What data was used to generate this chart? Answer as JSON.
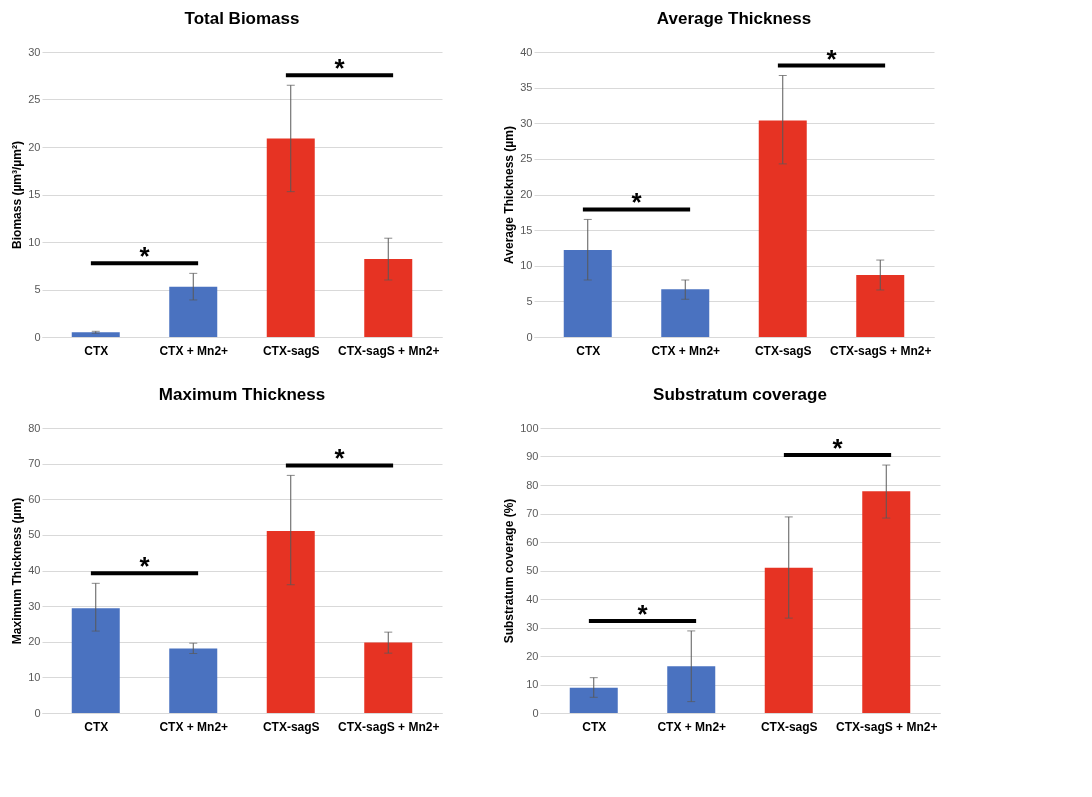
{
  "chart_data": [
    {
      "type": "bar",
      "title": "Total Biomass",
      "ylabel": "Biomass (µm³/µm²)",
      "categories": [
        "CTX",
        "CTX + Mn2+",
        "CTX-sagS",
        "CTX-sagS + Mn2+"
      ],
      "values": [
        0.5,
        5.3,
        20.9,
        8.2
      ],
      "colors": [
        "#4a72c0",
        "#4a72c0",
        "#e63323",
        "#e63323"
      ],
      "errors": [
        [
          0.4,
          0.6
        ],
        [
          3.9,
          6.7
        ],
        [
          15.3,
          26.5
        ],
        [
          6.0,
          10.4
        ]
      ],
      "ylim": [
        0,
        30
      ],
      "yticks": [
        0,
        5,
        10,
        15,
        20,
        25,
        30
      ],
      "grid": "y",
      "annotations": [
        "*",
        "*"
      ]
    },
    {
      "type": "bar",
      "title": "Average Thickness",
      "ylabel": "Average Thickness (µm)",
      "categories": [
        "CTX",
        "CTX + Mn2+",
        "CTX-sagS",
        "CTX-sagS + Mn2+"
      ],
      "values": [
        12.2,
        6.7,
        30.4,
        8.7
      ],
      "colors": [
        "#4a72c0",
        "#4a72c0",
        "#e63323",
        "#e63323"
      ],
      "errors": [
        [
          8.0,
          16.5
        ],
        [
          5.3,
          8.0
        ],
        [
          24.3,
          36.7
        ],
        [
          6.6,
          10.8
        ]
      ],
      "ylim": [
        0,
        40
      ],
      "yticks": [
        0,
        5,
        10,
        15,
        20,
        25,
        30,
        35,
        40
      ],
      "grid": "y",
      "annotations": [
        "*",
        "*"
      ]
    },
    {
      "type": "bar",
      "title": "Maximum Thickness",
      "ylabel": "Maximum Thickness (µm)",
      "categories": [
        "CTX",
        "CTX + Mn2+",
        "CTX-sagS",
        "CTX-sagS + Mn2+"
      ],
      "values": [
        29.4,
        18.1,
        51.1,
        19.8
      ],
      "colors": [
        "#4a72c0",
        "#4a72c0",
        "#e63323",
        "#e63323"
      ],
      "errors": [
        [
          23.0,
          36.4
        ],
        [
          16.7,
          19.6
        ],
        [
          36.0,
          66.7
        ],
        [
          16.8,
          22.7
        ]
      ],
      "ylim": [
        0,
        80
      ],
      "yticks": [
        0,
        10,
        20,
        30,
        40,
        50,
        60,
        70,
        80
      ],
      "grid": "y",
      "annotations": [
        "*",
        "*"
      ]
    },
    {
      "type": "bar",
      "title": "Substratum coverage",
      "ylabel": "Substratum coverage (%)",
      "categories": [
        "CTX",
        "CTX + Mn2+",
        "CTX-sagS",
        "CTX-sagS + Mn2+"
      ],
      "values": [
        8.9,
        16.4,
        51,
        77.8
      ],
      "colors": [
        "#4a72c0",
        "#4a72c0",
        "#e63323",
        "#e63323"
      ],
      "errors": [
        [
          5.5,
          12.4
        ],
        [
          4,
          28.8
        ],
        [
          33.3,
          68.8
        ],
        [
          68.4,
          87
        ]
      ],
      "ylim": [
        0,
        100
      ],
      "yticks": [
        0,
        10,
        20,
        30,
        40,
        50,
        60,
        70,
        80,
        90,
        100
      ],
      "grid": "y",
      "annotations": [
        "*",
        "*"
      ]
    }
  ]
}
